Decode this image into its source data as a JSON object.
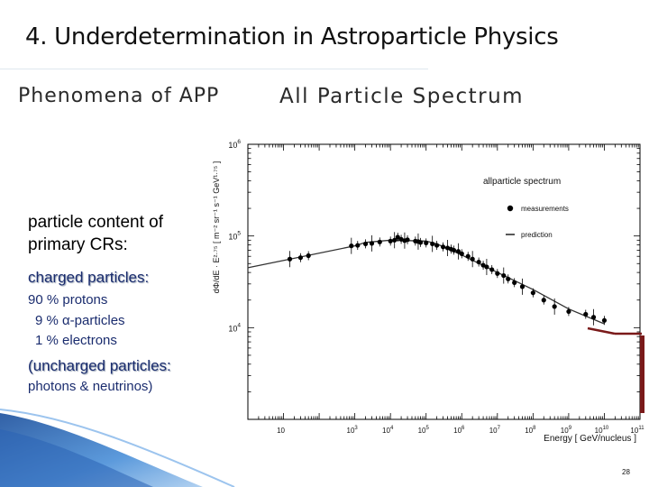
{
  "slide": {
    "title": "4. Underdetermination in Astroparticle Physics",
    "left_heading": "Phenomena of APP",
    "right_heading": "All Particle Spectrum",
    "content_line1": "particle content of",
    "content_line2": "primary CRs:",
    "charged_heading": "charged particles:",
    "charged_items": [
      "90 % protons",
      "  9 % α-particles",
      "  1 % electrons"
    ],
    "uncharged_heading": "(uncharged particles:",
    "uncharged_items": "photons & neutrinos)",
    "page_number": "28"
  },
  "colors": {
    "chart_point": "#000000",
    "chart_line": "#333333",
    "dark_red": "#7a1a1a",
    "text_blue": "#1a2c6e",
    "deco_blue": "#4a8fd8"
  },
  "chart_data": {
    "type": "scatter",
    "title": "allparticle spectrum",
    "xlabel": "Energy [ GeV/nucleus ]",
    "ylabel": "dΦ/dE · E²·⁷⁵ [ m⁻² sr⁻¹ s⁻¹ GeV¹·⁷⁵ ]",
    "x_log": true,
    "y_log": true,
    "xlim": [
      1,
      100000000000.0
    ],
    "ylim": [
      1000,
      1000000.0
    ],
    "x_ticks": [
      {
        "base": "10",
        "exp": ""
      },
      {
        "base": "10",
        "exp": "3"
      },
      {
        "base": "10",
        "exp": "4"
      },
      {
        "base": "10",
        "exp": "5"
      },
      {
        "base": "10",
        "exp": "6"
      },
      {
        "base": "10",
        "exp": "7"
      },
      {
        "base": "10",
        "exp": "8"
      },
      {
        "base": "10",
        "exp": "9"
      },
      {
        "base": "10",
        "exp": "10"
      },
      {
        "base": "10",
        "exp": "11"
      }
    ],
    "x_tick_values": [
      10,
      1000,
      10000,
      100000,
      1000000,
      10000000,
      100000000,
      1000000000,
      10000000000,
      100000000000
    ],
    "y_ticks": [
      {
        "base": "10",
        "exp": "6"
      },
      {
        "base": "10",
        "exp": "5"
      },
      {
        "base": "10",
        "exp": "4"
      }
    ],
    "y_tick_values": [
      1000000,
      100000,
      10000
    ],
    "legend": [
      {
        "label": "measurements",
        "marker": "dot"
      },
      {
        "label": "prediction",
        "marker": "dash"
      }
    ],
    "legend_position": "top-right",
    "series": [
      {
        "name": "measurements",
        "x": [
          15,
          30,
          50,
          800,
          1200,
          2000,
          3000,
          5000,
          10000,
          13000,
          16000,
          20000,
          25000,
          30000,
          50000,
          60000,
          70000,
          100000,
          150000,
          200000,
          300000,
          400000,
          500000,
          600000,
          800000,
          1000000,
          1500000,
          2000000,
          3000000,
          4000000,
          5000000,
          7000000,
          10000000,
          15000000,
          20000000,
          30000000,
          50000000,
          100000000,
          200000000,
          400000000,
          1000000000,
          3000000000,
          5000000000,
          10000000000
        ],
        "y": [
          56000,
          58000,
          61000,
          78000,
          79000,
          82000,
          83000,
          86000,
          88000,
          90000,
          97000,
          92000,
          89000,
          91000,
          88000,
          87000,
          85000,
          84000,
          82000,
          79000,
          76000,
          74000,
          72000,
          70000,
          68000,
          64000,
          60000,
          56000,
          52000,
          48000,
          46000,
          43000,
          39000,
          37000,
          34000,
          31000,
          28000,
          24000,
          20000,
          17000,
          15000,
          14000,
          13000,
          12000
        ]
      },
      {
        "name": "prediction",
        "x": [
          1,
          1000,
          2000,
          10000,
          100000,
          200000,
          1000000,
          10000000,
          100000000,
          1000000000,
          10000000000
        ],
        "y": [
          45000,
          78000,
          85000,
          90000,
          88000,
          82000,
          62000,
          40000,
          26000,
          16000,
          11000
        ]
      }
    ]
  }
}
